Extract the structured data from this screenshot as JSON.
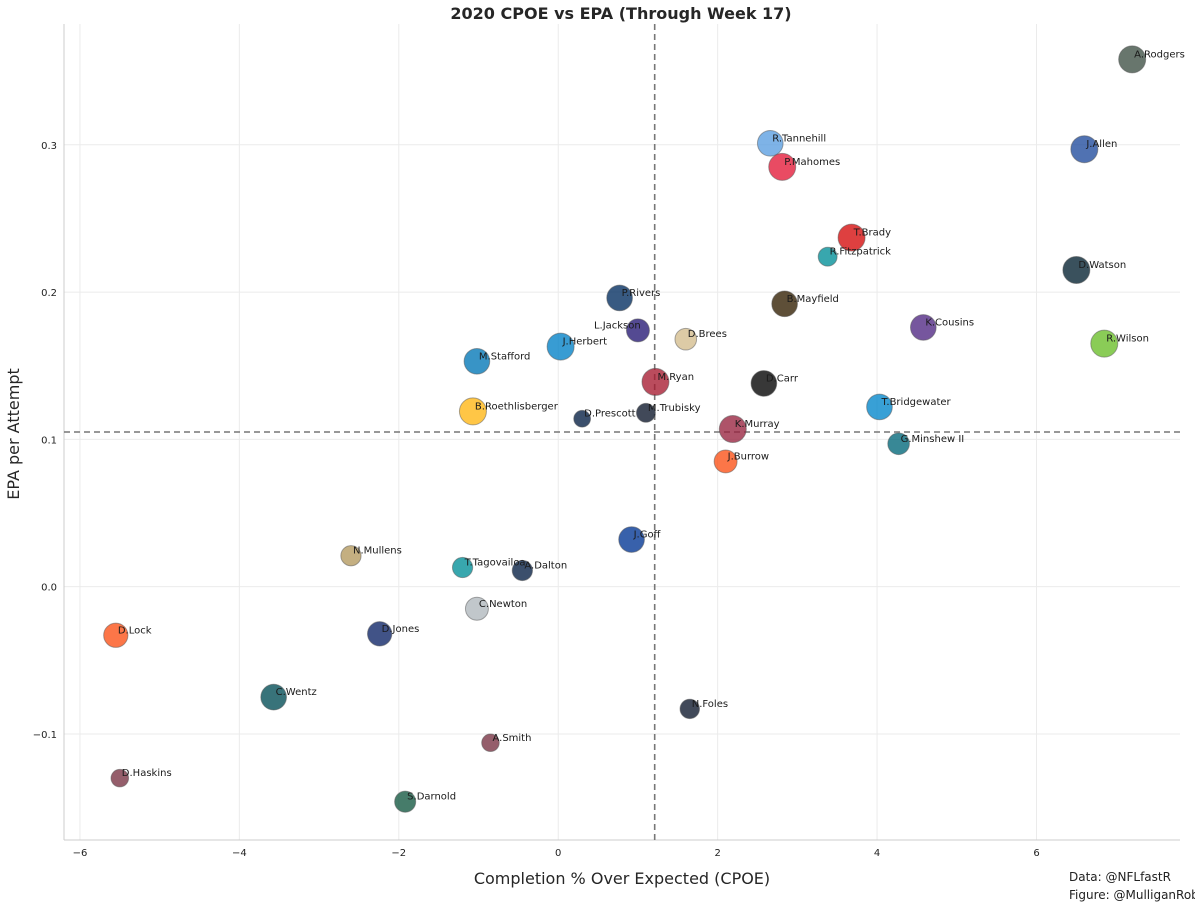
{
  "credits": {
    "data": "Data: @NFLfastR",
    "figure": "Figure: @MulliganRob"
  },
  "chart_data": {
    "type": "scatter",
    "title": "2020 CPOE vs EPA (Through Week 17)",
    "xlabel": "Completion % Over Expected (CPOE)",
    "ylabel": "EPA per Attempt",
    "xlim": [
      -6.2,
      7.8
    ],
    "ylim": [
      -0.172,
      0.382
    ],
    "xticks": [
      -6,
      -4,
      -2,
      0,
      2,
      4,
      6
    ],
    "yticks": [
      -0.1,
      0.0,
      0.1,
      0.2,
      0.3
    ],
    "ytick_labels": [
      "−0.1",
      "0.0",
      "0.1",
      "0.2",
      "0.3"
    ],
    "xtick_labels": [
      "−6",
      "−4",
      "−2",
      "0",
      "2",
      "4",
      "6"
    ],
    "grid": true,
    "reference_lines": {
      "vertical_x": 1.21,
      "horizontal_y": 0.105
    },
    "points": [
      {
        "label": "A.Rodgers",
        "x": 7.2,
        "y": 0.358,
        "color": "#3d4f44",
        "size": 1.0
      },
      {
        "label": "J.Allen",
        "x": 6.6,
        "y": 0.297,
        "color": "#1f4a9c",
        "size": 1.0
      },
      {
        "label": "R.Tannehill",
        "x": 2.66,
        "y": 0.301,
        "color": "#5a9ee0",
        "size": 0.95
      },
      {
        "label": "P.Mahomes",
        "x": 2.81,
        "y": 0.285,
        "color": "#e31837",
        "size": 1.0
      },
      {
        "label": "T.Brady",
        "x": 3.68,
        "y": 0.237,
        "color": "#d50a0a",
        "size": 1.0
      },
      {
        "label": "R.Fitzpatrick",
        "x": 3.38,
        "y": 0.224,
        "color": "#008e97",
        "size": 0.7
      },
      {
        "label": "D.Watson",
        "x": 6.5,
        "y": 0.215,
        "color": "#03202f",
        "size": 1.0
      },
      {
        "label": "P.Rivers",
        "x": 0.77,
        "y": 0.196,
        "color": "#002c5f",
        "size": 0.95
      },
      {
        "label": "B.Mayfield",
        "x": 2.84,
        "y": 0.192,
        "color": "#311d00",
        "size": 0.95
      },
      {
        "label": "K.Cousins",
        "x": 4.58,
        "y": 0.176,
        "color": "#4f2683",
        "size": 0.95
      },
      {
        "label": "L.Jackson",
        "x": 1.0,
        "y": 0.174,
        "color": "#241773",
        "size": 0.85
      },
      {
        "label": "D.Brees",
        "x": 1.6,
        "y": 0.168,
        "color": "#d3bc8d",
        "size": 0.8
      },
      {
        "label": "R.Wilson",
        "x": 6.85,
        "y": 0.165,
        "color": "#69be28",
        "size": 1.0
      },
      {
        "label": "J.Herbert",
        "x": 0.03,
        "y": 0.163,
        "color": "#0080c6",
        "size": 1.0
      },
      {
        "label": "M.Stafford",
        "x": -1.02,
        "y": 0.153,
        "color": "#0076b6",
        "size": 0.95
      },
      {
        "label": "M.Ryan",
        "x": 1.22,
        "y": 0.139,
        "color": "#a71930",
        "size": 1.0
      },
      {
        "label": "D.Carr",
        "x": 2.58,
        "y": 0.138,
        "color": "#000000",
        "size": 0.95
      },
      {
        "label": "T.Bridgewater",
        "x": 4.03,
        "y": 0.122,
        "color": "#0085ca",
        "size": 0.95
      },
      {
        "label": "B.Roethlisberger",
        "x": -1.07,
        "y": 0.119,
        "color": "#ffb612",
        "size": 1.0
      },
      {
        "label": "M.Trubisky",
        "x": 1.1,
        "y": 0.118,
        "color": "#0b162a",
        "size": 0.7
      },
      {
        "label": "D.Prescott",
        "x": 0.3,
        "y": 0.114,
        "color": "#041e42",
        "size": 0.62
      },
      {
        "label": "K.Murray",
        "x": 2.19,
        "y": 0.107,
        "color": "#97233f",
        "size": 1.0
      },
      {
        "label": "G.Minshew II",
        "x": 4.27,
        "y": 0.097,
        "color": "#006778",
        "size": 0.8
      },
      {
        "label": "J.Burrow",
        "x": 2.1,
        "y": 0.085,
        "color": "#fb4f14",
        "size": 0.85
      },
      {
        "label": "J.Goff",
        "x": 0.92,
        "y": 0.032,
        "color": "#003594",
        "size": 0.95
      },
      {
        "label": "N.Mullens",
        "x": -2.6,
        "y": 0.021,
        "color": "#b3995d",
        "size": 0.75
      },
      {
        "label": "T.Tagovailoa",
        "x": -1.2,
        "y": 0.013,
        "color": "#008e97",
        "size": 0.75
      },
      {
        "label": "A.Dalton",
        "x": -0.45,
        "y": 0.011,
        "color": "#041e42",
        "size": 0.75
      },
      {
        "label": "C.Newton",
        "x": -1.02,
        "y": -0.015,
        "color": "#b0b7bc",
        "size": 0.85
      },
      {
        "label": "D.Lock",
        "x": -5.55,
        "y": -0.033,
        "color": "#fb4f14",
        "size": 0.9
      },
      {
        "label": "D.Jones",
        "x": -2.24,
        "y": -0.032,
        "color": "#0b2265",
        "size": 0.9
      },
      {
        "label": "C.Wentz",
        "x": -3.57,
        "y": -0.075,
        "color": "#004c54",
        "size": 0.95
      },
      {
        "label": "N.Foles",
        "x": 1.65,
        "y": -0.083,
        "color": "#0b162a",
        "size": 0.72
      },
      {
        "label": "A.Smith",
        "x": -0.85,
        "y": -0.106,
        "color": "#773141",
        "size": 0.65
      },
      {
        "label": "D.Haskins",
        "x": -5.5,
        "y": -0.13,
        "color": "#773141",
        "size": 0.65
      },
      {
        "label": "S.Darnold",
        "x": -1.92,
        "y": -0.146,
        "color": "#125740",
        "size": 0.78
      }
    ]
  }
}
